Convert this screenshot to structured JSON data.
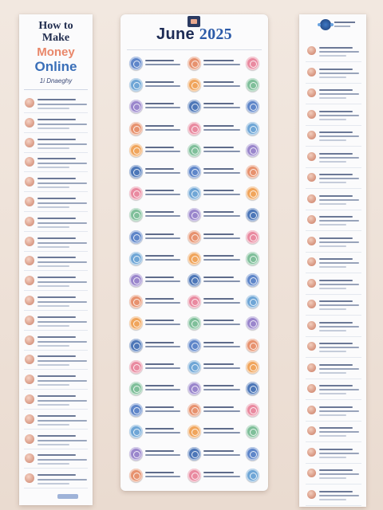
{
  "left_panel": {
    "title_line1": "How to",
    "title_line2": "Make",
    "title_line3": "Money",
    "title_line4": "Online",
    "subtitle": "1i Dnaeghy",
    "row_count": 20
  },
  "center_panel": {
    "title_month": "June",
    "title_year": "2025",
    "row_count": 20
  },
  "right_panel": {
    "row_count": 22
  },
  "colors": {
    "navy": "#1d2b55",
    "blue": "#2b5aa8",
    "coral": "#e9876a",
    "background": "#efe3da"
  },
  "circle_palette": [
    "#5f86c9",
    "#e7926f",
    "#e98aa0",
    "#6fa6d6",
    "#f0a55c",
    "#7fbf9a",
    "#9a86cc",
    "#4d77b8"
  ]
}
